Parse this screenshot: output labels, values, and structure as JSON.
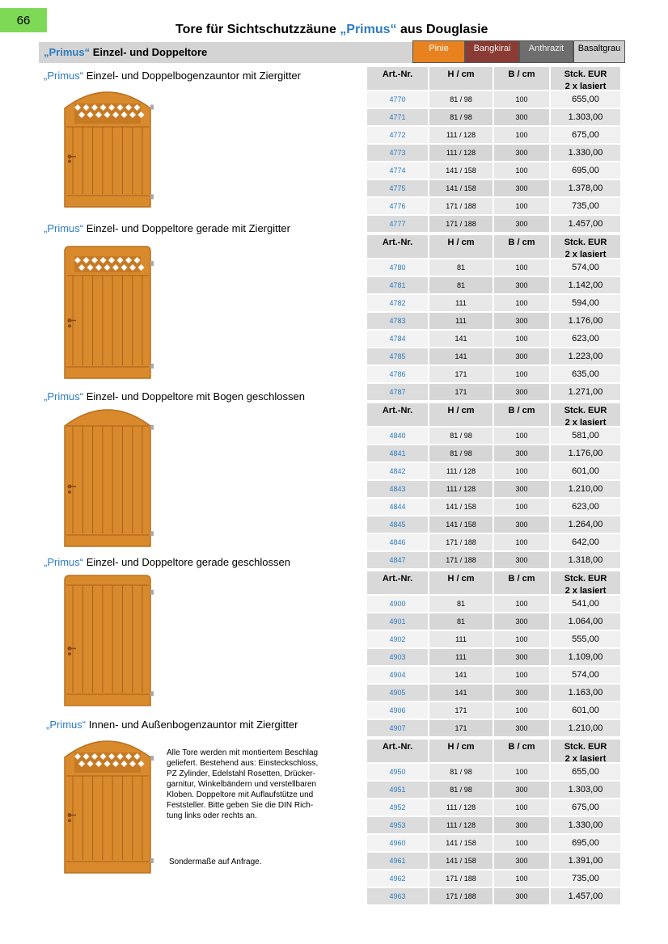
{
  "page_number": "66",
  "title": {
    "pre": "Tore für Sichtschutzzäune ",
    "brand": "„Primus“",
    "post": " aus Douglasie"
  },
  "section": {
    "brand": "„Primus“",
    "text": " Einzel- und Doppeltore"
  },
  "colors": [
    {
      "name": "Pinie",
      "color": "#e8821f"
    },
    {
      "name": "Bangkirai",
      "color": "#8a3b33"
    },
    {
      "name": "Anthrazit",
      "color": "#6e6e6e"
    },
    {
      "name": "Basaltgrau",
      "color": "#cfcfcf"
    }
  ],
  "column_headers": [
    "Art.-Nr.",
    "H / cm",
    "B / cm",
    "Stck. EUR",
    "2 x lasiert"
  ],
  "groups": [
    {
      "brand": "„Primus“",
      "heading": " Einzel- und Doppelbogenzauntor mit Ziergitter",
      "rows": [
        [
          "4770",
          "81 / 98",
          "100",
          "655,00"
        ],
        [
          "4771",
          "81 / 98",
          "300",
          "1.303,00"
        ],
        [
          "4772",
          "111 / 128",
          "100",
          "675,00"
        ],
        [
          "4773",
          "111 / 128",
          "300",
          "1.330,00"
        ],
        [
          "4774",
          "141 / 158",
          "100",
          "695,00"
        ],
        [
          "4775",
          "141 / 158",
          "300",
          "1.378,00"
        ],
        [
          "4776",
          "171 / 188",
          "100",
          "735,00"
        ],
        [
          "4777",
          "171 / 188",
          "300",
          "1.457,00"
        ]
      ]
    },
    {
      "brand": "„Primus“",
      "heading": " Einzel- und Doppeltore gerade mit Ziergitter",
      "rows": [
        [
          "4780",
          "81",
          "100",
          "574,00"
        ],
        [
          "4781",
          "81",
          "300",
          "1.142,00"
        ],
        [
          "4782",
          "111",
          "100",
          "594,00"
        ],
        [
          "4783",
          "111",
          "300",
          "1.176,00"
        ],
        [
          "4784",
          "141",
          "100",
          "623,00"
        ],
        [
          "4785",
          "141",
          "300",
          "1.223,00"
        ],
        [
          "4786",
          "171",
          "100",
          "635,00"
        ],
        [
          "4787",
          "171",
          "300",
          "1.271,00"
        ]
      ]
    },
    {
      "brand": "„Primus“",
      "heading": " Einzel- und Doppeltore mit Bogen geschlossen",
      "rows": [
        [
          "4840",
          "81 / 98",
          "100",
          "581,00"
        ],
        [
          "4841",
          "81 / 98",
          "300",
          "1.176,00"
        ],
        [
          "4842",
          "111 / 128",
          "100",
          "601,00"
        ],
        [
          "4843",
          "111 / 128",
          "300",
          "1.210,00"
        ],
        [
          "4844",
          "141 / 158",
          "100",
          "623,00"
        ],
        [
          "4845",
          "141 / 158",
          "300",
          "1.264,00"
        ],
        [
          "4846",
          "171 / 188",
          "100",
          "642,00"
        ],
        [
          "4847",
          "171 / 188",
          "300",
          "1.318,00"
        ]
      ]
    },
    {
      "brand": "„Primus“",
      "heading": " Einzel- und Doppeltore gerade geschlossen",
      "rows": [
        [
          "4900",
          "81",
          "100",
          "541,00"
        ],
        [
          "4901",
          "81",
          "300",
          "1.064,00"
        ],
        [
          "4902",
          "111",
          "100",
          "555,00"
        ],
        [
          "4903",
          "111",
          "300",
          "1.109,00"
        ],
        [
          "4904",
          "141",
          "100",
          "574,00"
        ],
        [
          "4905",
          "141",
          "300",
          "1.163,00"
        ],
        [
          "4906",
          "171",
          "100",
          "601,00"
        ],
        [
          "4907",
          "171",
          "300",
          "1.210,00"
        ]
      ]
    },
    {
      "brand": "„Primus“",
      "heading": " Innen- und Außenbogenzauntor mit Ziergitter",
      "rows": [
        [
          "4950",
          "81 / 98",
          "100",
          "655,00"
        ],
        [
          "4951",
          "81 / 98",
          "300",
          "1.303,00"
        ],
        [
          "4952",
          "111 / 128",
          "100",
          "675,00"
        ],
        [
          "4953",
          "111 / 128",
          "300",
          "1.330,00"
        ],
        [
          "4960",
          "141 / 158",
          "100",
          "695,00"
        ],
        [
          "4961",
          "141 / 158",
          "300",
          "1.391,00"
        ],
        [
          "4962",
          "171 / 188",
          "100",
          "735,00"
        ],
        [
          "4963",
          "171 / 188",
          "300",
          "1.457,00"
        ]
      ]
    }
  ],
  "note": [
    "Alle Tore werden mit montiertem Beschlag",
    "geliefert. Bestehend aus: Einsteckschloss,",
    "PZ Zylinder, Edelstahl Rosetten, Drücker-",
    "garnitur, Winkelbändern und verstellbaren",
    "Kloben. Doppeltore mit Auflaufstütze und",
    "Feststeller. Bitte geben Sie die DIN Rich-",
    "tung links oder rechts an."
  ],
  "special": "Sondermaße auf Anfrage."
}
